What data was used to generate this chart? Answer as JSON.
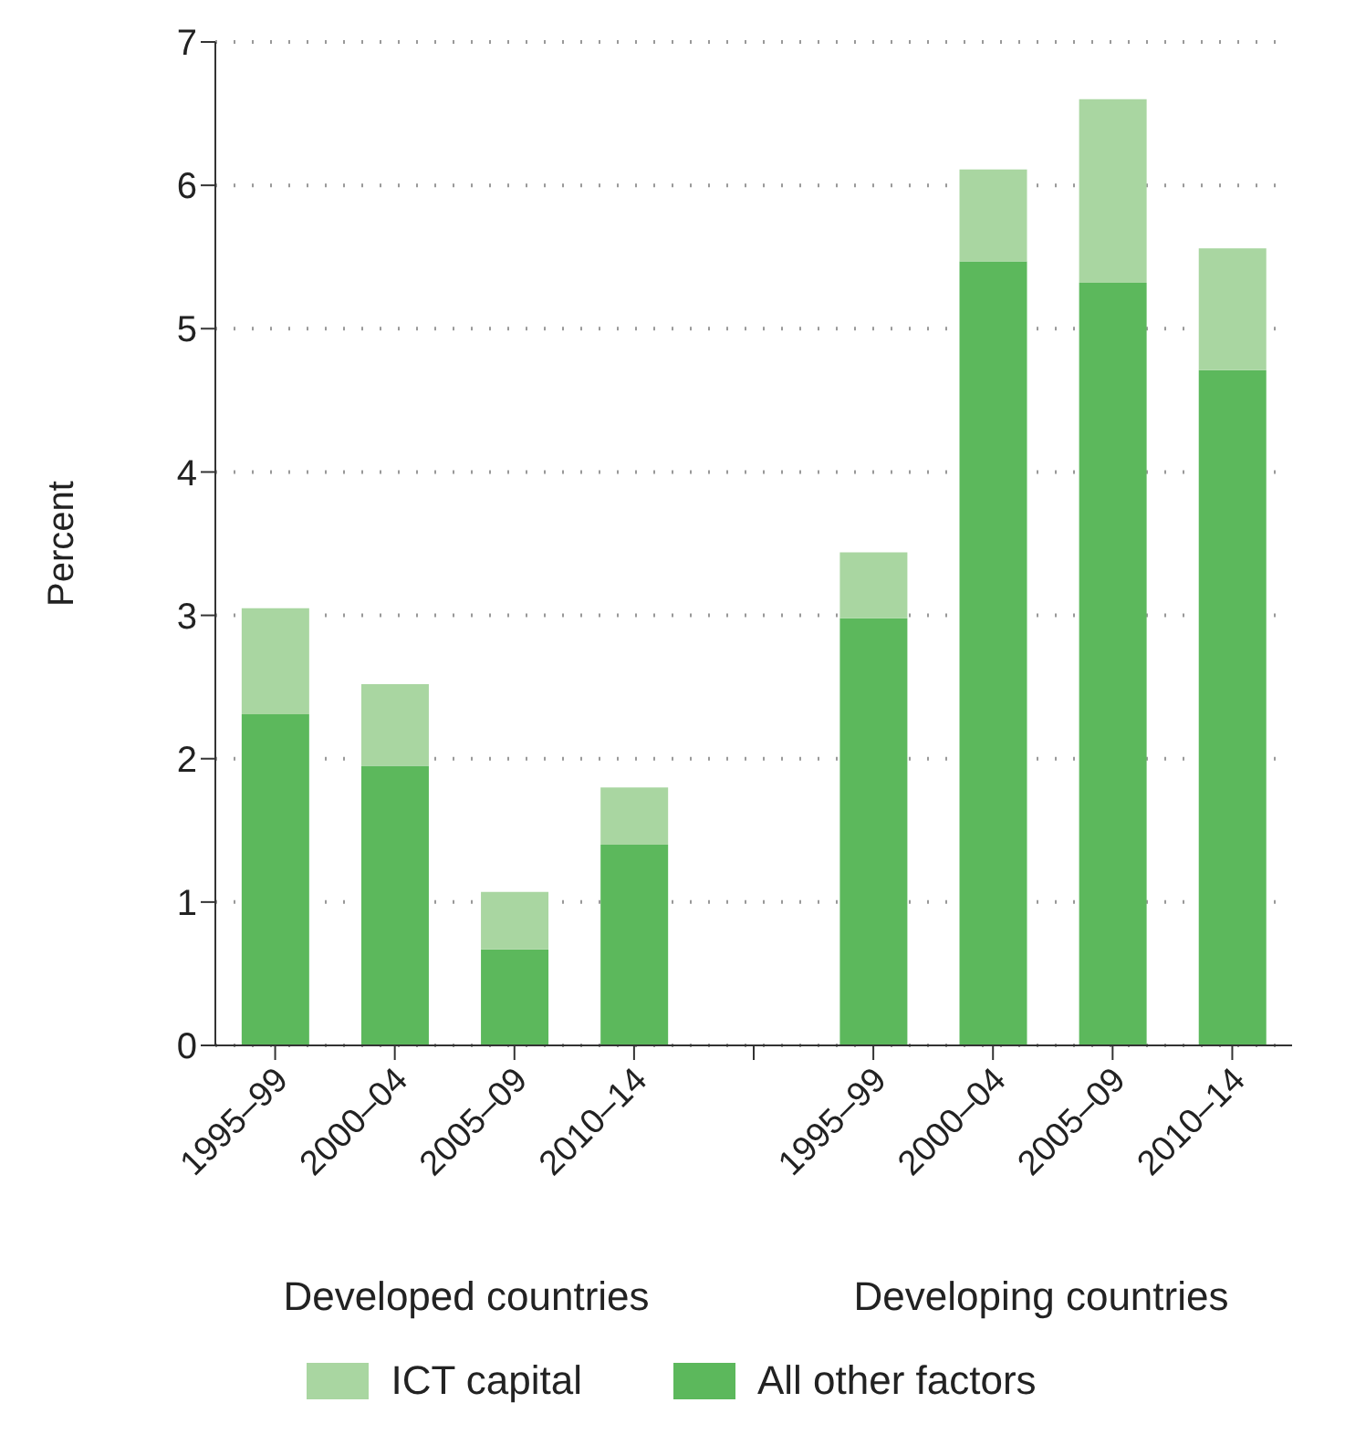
{
  "chart_data": {
    "type": "bar",
    "ylabel": "Percent",
    "categories": [
      "1995–99",
      "2000–04",
      "2005–09",
      "2010–14",
      null,
      "1995–99",
      "2000–04",
      "2005–09",
      "2010–14"
    ],
    "series": [
      {
        "name": "All other factors",
        "color": "#5cb85c",
        "values": [
          2.31,
          1.95,
          0.67,
          1.4,
          null,
          2.98,
          5.47,
          5.32,
          4.71
        ]
      },
      {
        "name": "ICT capital",
        "color": "#a9d6a1",
        "values": [
          0.74,
          0.57,
          0.4,
          0.4,
          null,
          0.46,
          0.64,
          1.28,
          0.85
        ]
      }
    ],
    "stacked": true,
    "ylim": [
      0,
      7
    ],
    "yticks": [
      0,
      1,
      2,
      3,
      4,
      5,
      6,
      7
    ],
    "grid": "y",
    "legend": "bottom",
    "annotations": [
      "Developed countries",
      "Developing countries"
    ]
  }
}
